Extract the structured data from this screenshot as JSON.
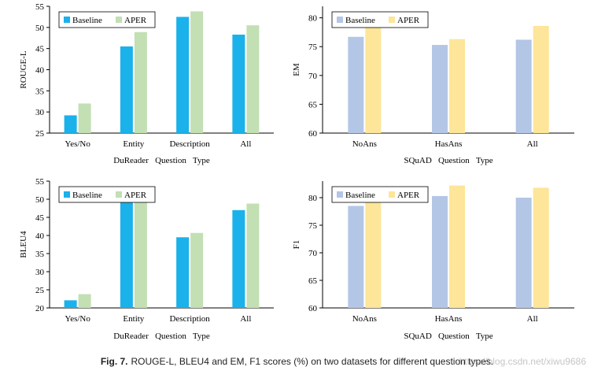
{
  "caption": {
    "label": "Fig. 7.",
    "text": "ROUGE-L, BLEU4 and EM, F1 scores (%) on two datasets for different question types."
  },
  "watermark": "https://blog.csdn.net/xiwu9686",
  "colors": {
    "dureader_baseline": "#1bb1ea",
    "dureader_aper": "#c3dfb4",
    "squad_baseline": "#b4c6e6",
    "squad_aper": "#fde599"
  },
  "chart_data": [
    {
      "id": "rouge",
      "type": "bar",
      "categories": [
        "Yes/No",
        "Entity",
        "Description",
        "All"
      ],
      "series": [
        {
          "name": "Baseline",
          "values": [
            29.2,
            45.5,
            52.5,
            48.3
          ]
        },
        {
          "name": "APER",
          "values": [
            32.0,
            48.9,
            53.8,
            50.5
          ]
        }
      ],
      "xlabel": "DuReader   Question   Type",
      "ylabel": "ROUGE-L",
      "ylim": [
        25,
        55
      ],
      "yticks": [
        25,
        30,
        35,
        40,
        45,
        50,
        55
      ],
      "legend": "top-left",
      "palette": "dureader"
    },
    {
      "id": "em",
      "type": "bar",
      "categories": [
        "NoAns",
        "HasAns",
        "All"
      ],
      "series": [
        {
          "name": "Baseline",
          "values": [
            76.7,
            75.3,
            76.2
          ]
        },
        {
          "name": "APER",
          "values": [
            79.0,
            76.3,
            78.6
          ]
        }
      ],
      "xlabel": "SQuAD   Question   Type",
      "ylabel": "EM",
      "ylim": [
        60,
        82
      ],
      "yticks": [
        60,
        65,
        70,
        75,
        80
      ],
      "legend": "top-left",
      "palette": "squad"
    },
    {
      "id": "bleu",
      "type": "bar",
      "categories": [
        "Yes/No",
        "Entity",
        "Description",
        "All"
      ],
      "series": [
        {
          "name": "Baseline",
          "values": [
            22.1,
            51.8,
            39.5,
            47.0
          ]
        },
        {
          "name": "APER",
          "values": [
            23.8,
            52.6,
            40.7,
            48.8
          ]
        }
      ],
      "xlabel": "DuReader   Question   Type",
      "ylabel": "BLEU4",
      "ylim": [
        20,
        55
      ],
      "yticks": [
        20,
        25,
        30,
        35,
        40,
        45,
        50,
        55
      ],
      "legend": "top-left",
      "palette": "dureader"
    },
    {
      "id": "f1",
      "type": "bar",
      "categories": [
        "NoAns",
        "HasAns",
        "All"
      ],
      "series": [
        {
          "name": "Baseline",
          "values": [
            78.5,
            80.3,
            80.0
          ]
        },
        {
          "name": "APER",
          "values": [
            79.8,
            82.2,
            81.8
          ]
        }
      ],
      "xlabel": "SQuAD   Question   Type",
      "ylabel": "F1",
      "ylim": [
        60,
        83
      ],
      "yticks": [
        60,
        65,
        70,
        75,
        80
      ],
      "legend": "top-left",
      "palette": "squad"
    }
  ]
}
